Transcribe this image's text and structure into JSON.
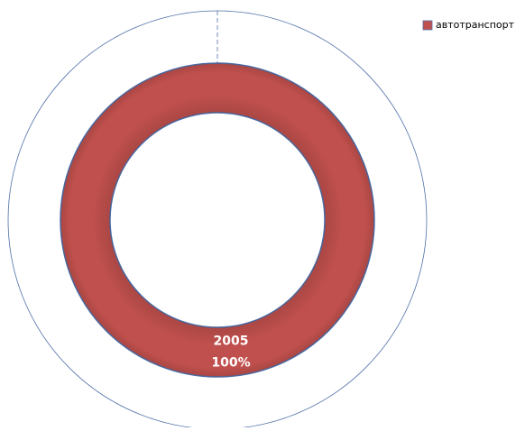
{
  "chart_data": {
    "type": "doughnut",
    "categories": [
      "автотранспорт"
    ],
    "colors": [
      "#c0504d"
    ],
    "series": [
      {
        "name": null,
        "values": [
          100
        ],
        "color": "#ffffff"
      },
      {
        "name": "2005",
        "values": [
          100
        ],
        "value_labels": [
          "100%"
        ],
        "color": "#c0504d"
      }
    ],
    "legend": "top-right"
  }
}
